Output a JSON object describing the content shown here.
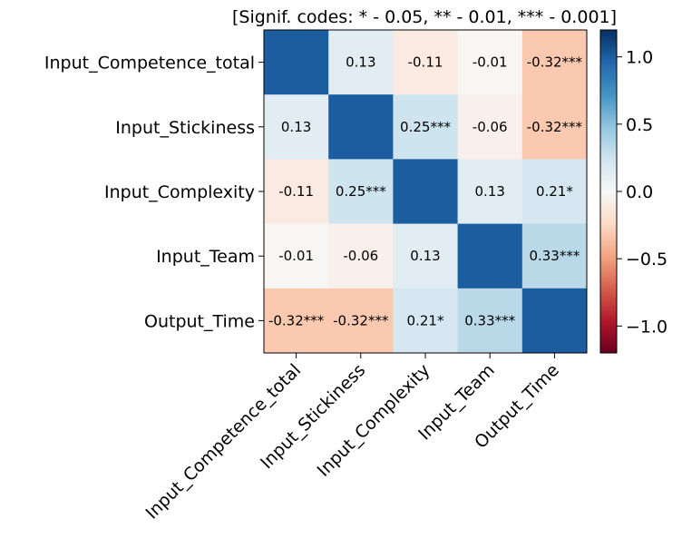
{
  "chart_data": {
    "type": "heatmap",
    "title": "[Signif. codes: * - 0.05, ** - 0.01, *** - 0.001]",
    "rows": [
      "Input_Competence_total",
      "Input_Stickiness",
      "Input_Complexity",
      "Input_Team",
      "Output_Time"
    ],
    "columns": [
      "Input_Competence_total",
      "Input_Stickiness",
      "Input_Complexity",
      "Input_Team",
      "Output_Time"
    ],
    "values": [
      [
        1.0,
        0.13,
        -0.11,
        -0.01,
        -0.32
      ],
      [
        0.13,
        1.0,
        0.25,
        -0.06,
        -0.32
      ],
      [
        -0.11,
        0.25,
        1.0,
        0.13,
        0.21
      ],
      [
        -0.01,
        -0.06,
        0.13,
        1.0,
        0.33
      ],
      [
        -0.32,
        -0.32,
        0.21,
        0.33,
        1.0
      ]
    ],
    "cell_labels": [
      [
        "",
        "0.13",
        "-0.11",
        "-0.01",
        "-0.32***"
      ],
      [
        "0.13",
        "",
        "0.25***",
        "-0.06",
        "-0.32***"
      ],
      [
        "-0.11",
        "0.25***",
        "",
        "0.13",
        "0.21*"
      ],
      [
        "-0.01",
        "-0.06",
        "0.13",
        "",
        "0.33***"
      ],
      [
        "-0.32***",
        "-0.32***",
        "0.21*",
        "0.33***",
        ""
      ]
    ],
    "colormap": "RdBu",
    "color_range": [
      -1.2,
      1.2
    ],
    "colorbar_ticks": [
      1.0,
      0.5,
      0.0,
      -0.5,
      -1.0
    ],
    "colorbar_tick_labels": [
      "1.0",
      "0.5",
      "0.0",
      "−0.5",
      "−1.0"
    ]
  }
}
